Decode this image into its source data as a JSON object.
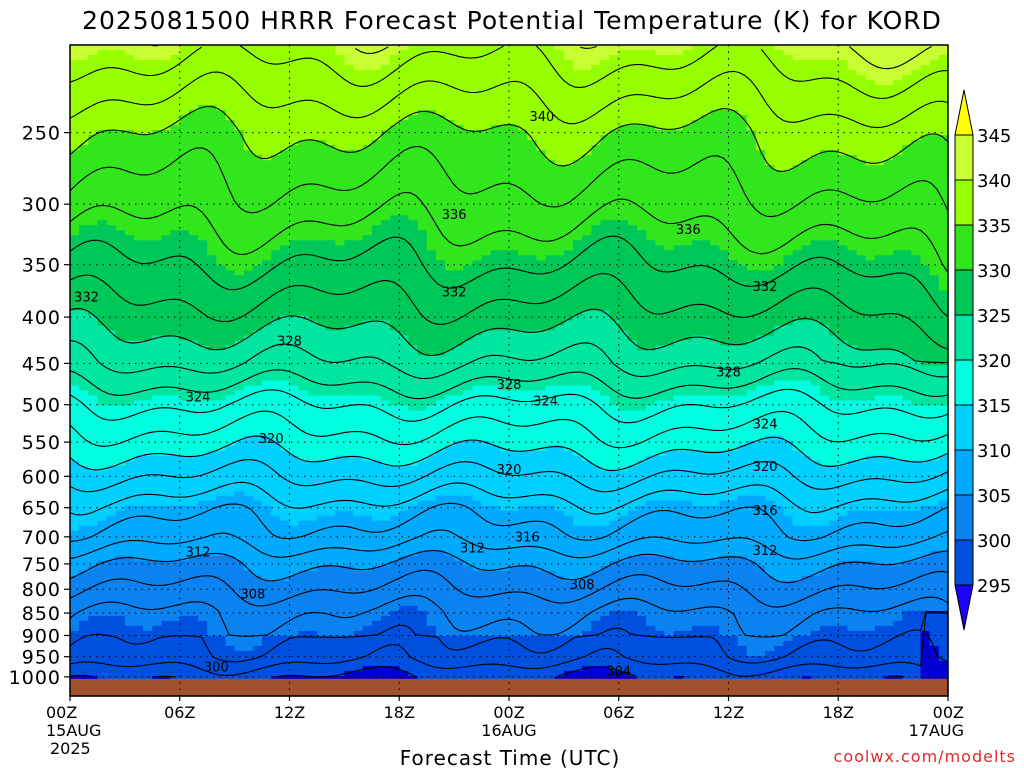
{
  "chart_data": {
    "type": "heatmap",
    "title": "2025081500 HRRR Forecast Potential Temperature (K) for KORD",
    "xlabel": "Forecast Time (UTC)",
    "ylabel": "",
    "watermark": "coolwx.com/modelts",
    "x_ticks": [
      {
        "hour": 0,
        "label": "00Z",
        "sub1": "15AUG",
        "sub2": "2025"
      },
      {
        "hour": 6,
        "label": "06Z"
      },
      {
        "hour": 12,
        "label": "12Z"
      },
      {
        "hour": 18,
        "label": "18Z"
      },
      {
        "hour": 24,
        "label": "00Z",
        "sub1": "16AUG"
      },
      {
        "hour": 30,
        "label": "06Z"
      },
      {
        "hour": 36,
        "label": "12Z"
      },
      {
        "hour": 42,
        "label": "18Z"
      },
      {
        "hour": 48,
        "label": "00Z",
        "sub1": "17AUG"
      }
    ],
    "x_range_hours": [
      0,
      48
    ],
    "y_ticks_hpa": [
      250,
      300,
      350,
      400,
      450,
      500,
      550,
      600,
      650,
      700,
      750,
      800,
      850,
      900,
      950,
      1000
    ],
    "y_axis": "pressure (hPa), log scale, inverted",
    "y_range_hpa": [
      200,
      1050
    ],
    "surface_pressure_hpa": 1000,
    "colorbar": {
      "levels": [
        295,
        300,
        305,
        310,
        315,
        320,
        325,
        330,
        335,
        340,
        345
      ],
      "colors": [
        "#1a00ff",
        "#0000d2",
        "#0050e0",
        "#0a82f0",
        "#00aaff",
        "#00d0ff",
        "#00ffe0",
        "#00e6a0",
        "#00c858",
        "#32e61e",
        "#96ff00",
        "#c8ff32",
        "#ffff00"
      ]
    },
    "surface_color": "#a0522d",
    "contour_interval_K": 2,
    "contour_labels": [
      {
        "value": 340,
        "hour": 25.8,
        "hpa": 240
      },
      {
        "value": 336,
        "hour": 21.0,
        "hpa": 308
      },
      {
        "value": 336,
        "hour": 33.8,
        "hpa": 320
      },
      {
        "value": 332,
        "hour": 0.9,
        "hpa": 380
      },
      {
        "value": 332,
        "hour": 21.0,
        "hpa": 375
      },
      {
        "value": 332,
        "hour": 38.0,
        "hpa": 370
      },
      {
        "value": 328,
        "hour": 12.0,
        "hpa": 425
      },
      {
        "value": 328,
        "hour": 24.0,
        "hpa": 475
      },
      {
        "value": 328,
        "hour": 36.0,
        "hpa": 460
      },
      {
        "value": 324,
        "hour": 7.0,
        "hpa": 490
      },
      {
        "value": 324,
        "hour": 26.0,
        "hpa": 495
      },
      {
        "value": 324,
        "hour": 38.0,
        "hpa": 525
      },
      {
        "value": 320,
        "hour": 11.0,
        "hpa": 545
      },
      {
        "value": 320,
        "hour": 24.0,
        "hpa": 590
      },
      {
        "value": 320,
        "hour": 38.0,
        "hpa": 585
      },
      {
        "value": 316,
        "hour": 38.0,
        "hpa": 655
      },
      {
        "value": 316,
        "hour": 25.0,
        "hpa": 700
      },
      {
        "value": 312,
        "hour": 7.0,
        "hpa": 728
      },
      {
        "value": 312,
        "hour": 22.0,
        "hpa": 720
      },
      {
        "value": 312,
        "hour": 38.0,
        "hpa": 725
      },
      {
        "value": 308,
        "hour": 10.0,
        "hpa": 810
      },
      {
        "value": 308,
        "hour": 28.0,
        "hpa": 790
      },
      {
        "value": 304,
        "hour": 30.0,
        "hpa": 985
      },
      {
        "value": 300,
        "hour": 8.0,
        "hpa": 975
      }
    ],
    "theta_profile_reference": [
      {
        "hpa": 200,
        "theta": 345
      },
      {
        "hpa": 250,
        "theta": 340
      },
      {
        "hpa": 300,
        "theta": 337
      },
      {
        "hpa": 350,
        "theta": 334
      },
      {
        "hpa": 400,
        "theta": 331
      },
      {
        "hpa": 450,
        "theta": 328
      },
      {
        "hpa": 500,
        "theta": 324
      },
      {
        "hpa": 550,
        "theta": 321
      },
      {
        "hpa": 600,
        "theta": 318
      },
      {
        "hpa": 650,
        "theta": 315
      },
      {
        "hpa": 700,
        "theta": 313
      },
      {
        "hpa": 750,
        "theta": 310
      },
      {
        "hpa": 800,
        "theta": 308
      },
      {
        "hpa": 850,
        "theta": 306
      },
      {
        "hpa": 900,
        "theta": 305
      },
      {
        "hpa": 950,
        "theta": 304
      },
      {
        "hpa": 1000,
        "theta": 301
      }
    ]
  }
}
